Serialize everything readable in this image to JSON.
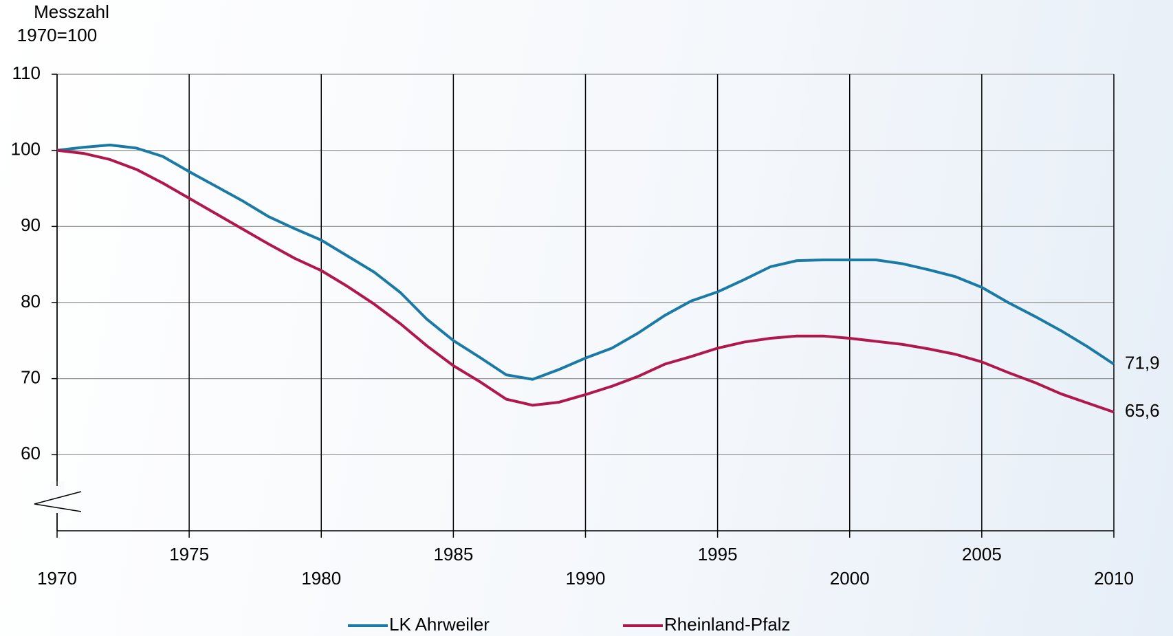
{
  "chart_data": {
    "type": "line",
    "y_label_lines": [
      "Messzahl",
      "1970=100"
    ],
    "x": [
      1970,
      1971,
      1972,
      1973,
      1974,
      1975,
      1976,
      1977,
      1978,
      1979,
      1980,
      1981,
      1982,
      1983,
      1984,
      1985,
      1986,
      1987,
      1988,
      1989,
      1990,
      1991,
      1992,
      1993,
      1994,
      1995,
      1996,
      1997,
      1998,
      1999,
      2000,
      2001,
      2002,
      2003,
      2004,
      2005,
      2006,
      2007,
      2008,
      2009,
      2010
    ],
    "series": [
      {
        "name": "LK Ahrweiler",
        "color": "#1a7aa6",
        "values": [
          100,
          100.4,
          100.7,
          100.3,
          99.2,
          97.2,
          95.3,
          93.4,
          91.3,
          89.7,
          88.2,
          86.1,
          84,
          81.3,
          77.8,
          75,
          72.8,
          70.5,
          69.9,
          71.2,
          72.7,
          74,
          76,
          78.3,
          80.2,
          81.4,
          83,
          84.7,
          85.5,
          85.6,
          85.6,
          85.6,
          85.1,
          84.3,
          83.4,
          82,
          80,
          78.2,
          76.3,
          74.2,
          71.9
        ],
        "value_labels": [
          null,
          null,
          null,
          null,
          null,
          null,
          null,
          null,
          null,
          null,
          null,
          null,
          null,
          null,
          null,
          null,
          null,
          null,
          null,
          null,
          null,
          null,
          null,
          null,
          null,
          null,
          null,
          null,
          null,
          null,
          null,
          null,
          null,
          null,
          null,
          null,
          null,
          null,
          null,
          null,
          "71,9"
        ]
      },
      {
        "name": "Rheinland-Pfalz",
        "color": "#b0174a",
        "values": [
          100,
          99.6,
          98.8,
          97.5,
          95.7,
          93.7,
          91.7,
          89.7,
          87.7,
          85.8,
          84.2,
          82.1,
          79.8,
          77.2,
          74.3,
          71.7,
          69.6,
          67.3,
          66.5,
          66.9,
          67.9,
          69,
          70.3,
          71.9,
          72.9,
          74,
          74.8,
          75.3,
          75.6,
          75.6,
          75.3,
          74.9,
          74.5,
          73.9,
          73.2,
          72.2,
          70.8,
          69.5,
          68,
          66.8,
          65.6
        ],
        "value_labels": [
          null,
          null,
          null,
          null,
          null,
          null,
          null,
          null,
          null,
          null,
          null,
          null,
          null,
          null,
          null,
          null,
          null,
          null,
          null,
          null,
          null,
          null,
          null,
          null,
          null,
          null,
          null,
          null,
          null,
          null,
          null,
          null,
          null,
          null,
          null,
          null,
          null,
          null,
          null,
          null,
          "65,6"
        ]
      }
    ],
    "xlim": [
      1970,
      2010
    ],
    "xticks": [
      1970,
      1975,
      1980,
      1985,
      1990,
      1995,
      2000,
      2005,
      2010
    ],
    "ylim": [
      50,
      110
    ],
    "yticks": [
      60,
      70,
      80,
      90,
      100,
      110
    ],
    "grid": true,
    "axis_break": true,
    "legend": "bottom"
  }
}
